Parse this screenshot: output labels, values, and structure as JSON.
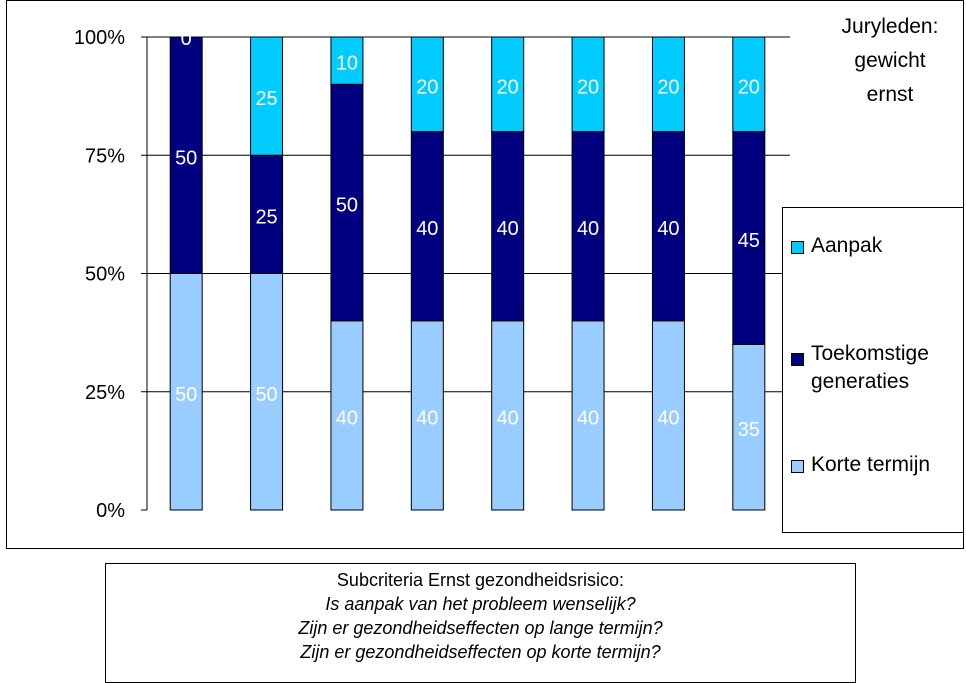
{
  "chart_data": {
    "type": "bar",
    "stacked": true,
    "normalized": true,
    "categories": [
      "",
      "",
      "",
      "",
      "",
      "",
      "",
      ""
    ],
    "series": [
      {
        "name": "Korte termijn",
        "color": "#99ccff",
        "values": [
          50,
          50,
          40,
          40,
          40,
          40,
          40,
          35
        ]
      },
      {
        "name": "Toekomstige generaties",
        "color": "#000080",
        "values": [
          50,
          25,
          50,
          40,
          40,
          40,
          40,
          45
        ]
      },
      {
        "name": "Aanpak",
        "color": "#00ccff",
        "values": [
          0,
          25,
          10,
          20,
          20,
          20,
          20,
          20
        ]
      }
    ],
    "yticks": [
      "0%",
      "25%",
      "50%",
      "75%",
      "100%"
    ],
    "ylim": [
      0,
      100
    ],
    "grid": true,
    "legend_position": "right",
    "corner_title": [
      "Juryleden:",
      "gewicht",
      "ernst"
    ],
    "legend_order": [
      "Aanpak",
      "Toekomstige generaties",
      "Korte termijn"
    ]
  },
  "legend": {
    "items": [
      {
        "label_lines": [
          "Aanpak"
        ],
        "color": "#00ccff"
      },
      {
        "label_lines": [
          "Toekomstige",
          "generaties"
        ],
        "color": "#000080"
      },
      {
        "label_lines": [
          "Korte termijn"
        ],
        "color": "#99ccff"
      }
    ]
  },
  "caption": {
    "heading": "Subcriteria Ernst gezondheidsrisico:",
    "questions": [
      "Is aanpak van het probleem wenselijk?",
      "Zijn er gezondheidseffecten op lange termijn?",
      "Zijn er gezondheidseffecten op korte termijn?"
    ]
  }
}
